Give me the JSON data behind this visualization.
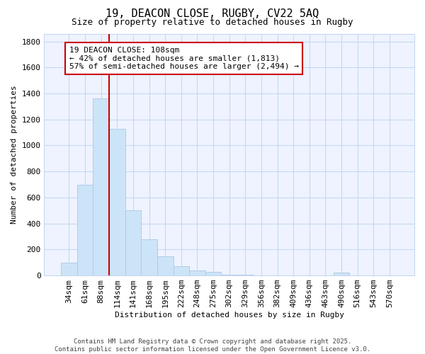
{
  "title_line1": "19, DEACON CLOSE, RUGBY, CV22 5AQ",
  "title_line2": "Size of property relative to detached houses in Rugby",
  "xlabel": "Distribution of detached houses by size in Rugby",
  "ylabel": "Number of detached properties",
  "categories": [
    "34sqm",
    "61sqm",
    "88sqm",
    "114sqm",
    "141sqm",
    "168sqm",
    "195sqm",
    "222sqm",
    "248sqm",
    "275sqm",
    "302sqm",
    "329sqm",
    "356sqm",
    "382sqm",
    "409sqm",
    "436sqm",
    "463sqm",
    "490sqm",
    "516sqm",
    "543sqm",
    "570sqm"
  ],
  "values": [
    100,
    700,
    1360,
    1130,
    500,
    280,
    145,
    70,
    40,
    30,
    5,
    5,
    0,
    0,
    0,
    0,
    0,
    20,
    0,
    0,
    0
  ],
  "bar_color": "#cce4f7",
  "bar_edge_color": "#aac8e8",
  "red_line_index": 3,
  "red_line_color": "#cc0000",
  "annotation_text": "19 DEACON CLOSE: 108sqm\n← 42% of detached houses are smaller (1,813)\n57% of semi-detached houses are larger (2,494) →",
  "annotation_box_facecolor": "#ffffff",
  "annotation_box_edgecolor": "#cc0000",
  "ylim": [
    0,
    1860
  ],
  "yticks": [
    0,
    200,
    400,
    600,
    800,
    1000,
    1200,
    1400,
    1600,
    1800
  ],
  "bg_color": "#ffffff",
  "plot_bg_color": "#eef3ff",
  "grid_color": "#c8d8f0",
  "footer_line1": "Contains HM Land Registry data © Crown copyright and database right 2025.",
  "footer_line2": "Contains public sector information licensed under the Open Government Licence v3.0.",
  "title_fontsize": 11,
  "subtitle_fontsize": 9,
  "axis_label_fontsize": 8,
  "tick_fontsize": 8,
  "annotation_fontsize": 8,
  "footer_fontsize": 6.5
}
